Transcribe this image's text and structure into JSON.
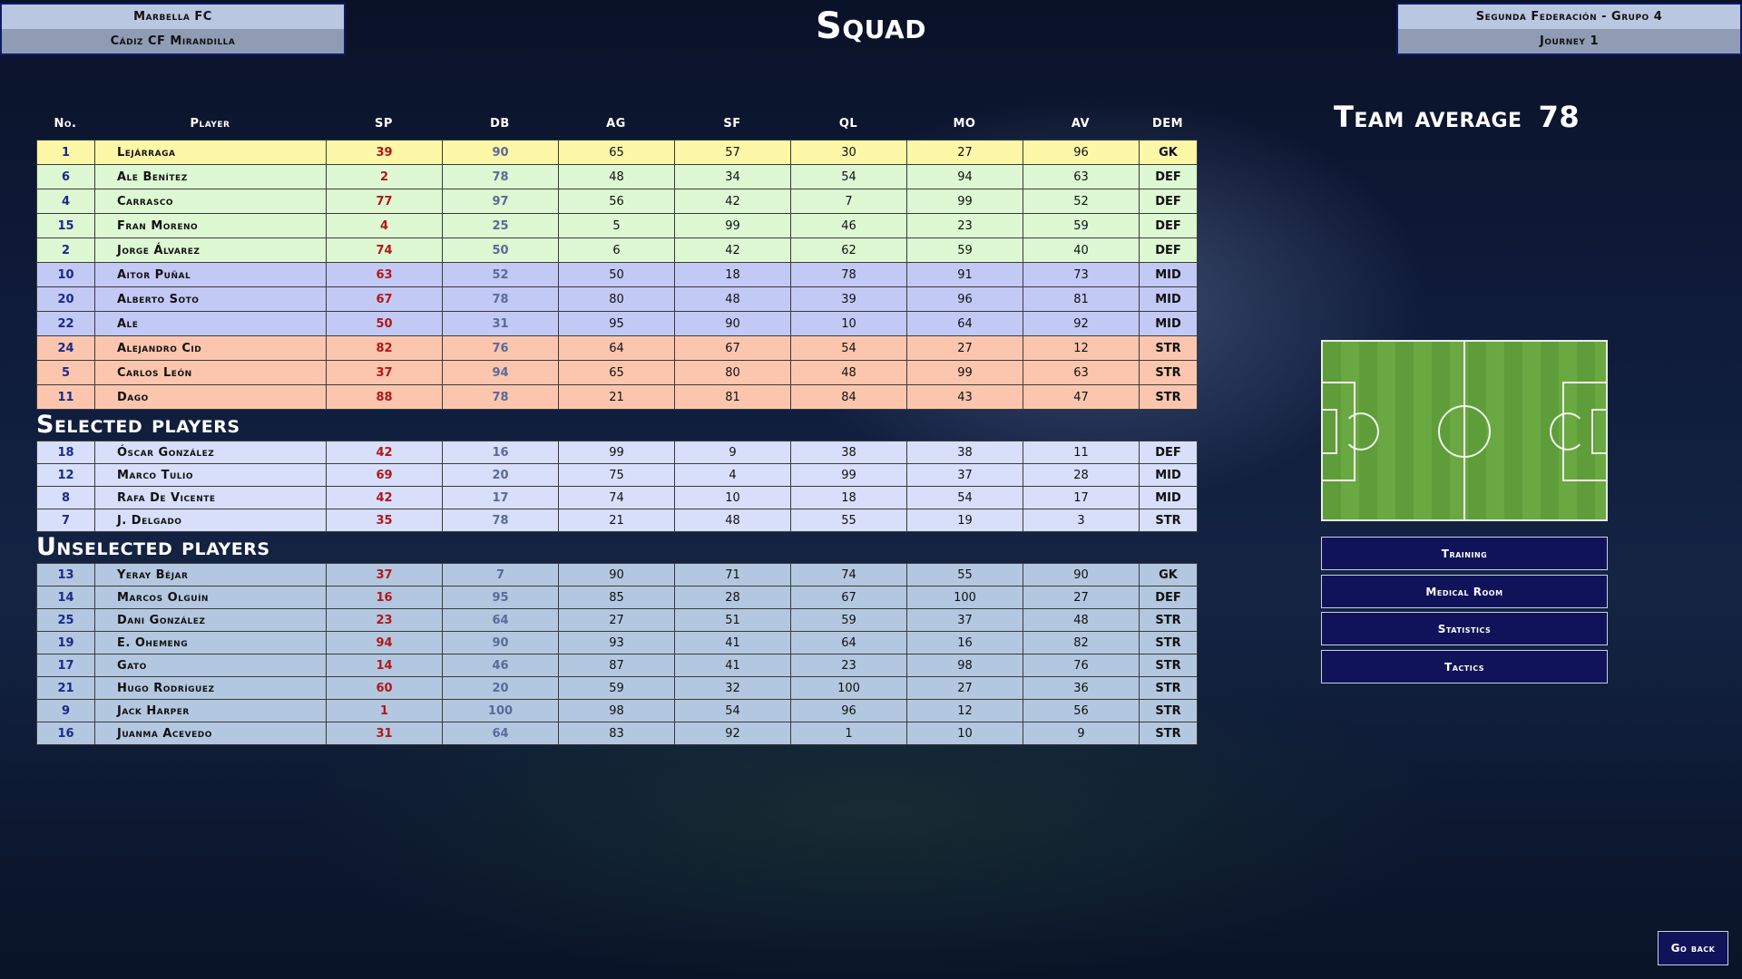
{
  "match": {
    "home": "Marbella FC",
    "away": "Cádiz CF Mirandilla"
  },
  "league": {
    "name": "Segunda Federación - Grupo 4",
    "journey": "Journey 1"
  },
  "title": "Squad",
  "team_average": {
    "label": "Team average",
    "value": "78"
  },
  "columns": [
    "No.",
    "Player",
    "SP",
    "DB",
    "AG",
    "SF",
    "QL",
    "MO",
    "AV",
    "DEM"
  ],
  "sections": {
    "selected": "Selected players",
    "unselected": "Unselected players"
  },
  "starting": [
    {
      "no": "1",
      "name": "Lejárraga",
      "sp": "39",
      "db": "90",
      "ag": "65",
      "sf": "57",
      "ql": "30",
      "mo": "27",
      "av": "96",
      "dem": "GK"
    },
    {
      "no": "6",
      "name": "Ale Benítez",
      "sp": "2",
      "db": "78",
      "ag": "48",
      "sf": "34",
      "ql": "54",
      "mo": "94",
      "av": "63",
      "dem": "DEF"
    },
    {
      "no": "4",
      "name": "Carrasco",
      "sp": "77",
      "db": "97",
      "ag": "56",
      "sf": "42",
      "ql": "7",
      "mo": "99",
      "av": "52",
      "dem": "DEF"
    },
    {
      "no": "15",
      "name": "Fran Moreno",
      "sp": "4",
      "db": "25",
      "ag": "5",
      "sf": "99",
      "ql": "46",
      "mo": "23",
      "av": "59",
      "dem": "DEF"
    },
    {
      "no": "2",
      "name": "Jorge Álvarez",
      "sp": "74",
      "db": "50",
      "ag": "6",
      "sf": "42",
      "ql": "62",
      "mo": "59",
      "av": "40",
      "dem": "DEF"
    },
    {
      "no": "10",
      "name": "Aitor Puñal",
      "sp": "63",
      "db": "52",
      "ag": "50",
      "sf": "18",
      "ql": "78",
      "mo": "91",
      "av": "73",
      "dem": "MID"
    },
    {
      "no": "20",
      "name": "Alberto Soto",
      "sp": "67",
      "db": "78",
      "ag": "80",
      "sf": "48",
      "ql": "39",
      "mo": "96",
      "av": "81",
      "dem": "MID"
    },
    {
      "no": "22",
      "name": "Ale",
      "sp": "50",
      "db": "31",
      "ag": "95",
      "sf": "90",
      "ql": "10",
      "mo": "64",
      "av": "92",
      "dem": "MID"
    },
    {
      "no": "24",
      "name": "Alejandro Cid",
      "sp": "82",
      "db": "76",
      "ag": "64",
      "sf": "67",
      "ql": "54",
      "mo": "27",
      "av": "12",
      "dem": "STR"
    },
    {
      "no": "5",
      "name": "Carlos León",
      "sp": "37",
      "db": "94",
      "ag": "65",
      "sf": "80",
      "ql": "48",
      "mo": "99",
      "av": "63",
      "dem": "STR"
    },
    {
      "no": "11",
      "name": "Dago",
      "sp": "88",
      "db": "78",
      "ag": "21",
      "sf": "81",
      "ql": "84",
      "mo": "43",
      "av": "47",
      "dem": "STR"
    }
  ],
  "selected": [
    {
      "no": "18",
      "name": "Óscar González",
      "sp": "42",
      "db": "16",
      "ag": "99",
      "sf": "9",
      "ql": "38",
      "mo": "38",
      "av": "11",
      "dem": "DEF"
    },
    {
      "no": "12",
      "name": "Marco Tulio",
      "sp": "69",
      "db": "20",
      "ag": "75",
      "sf": "4",
      "ql": "99",
      "mo": "37",
      "av": "28",
      "dem": "MID"
    },
    {
      "no": "8",
      "name": "Rafa De Vicente",
      "sp": "42",
      "db": "17",
      "ag": "74",
      "sf": "10",
      "ql": "18",
      "mo": "54",
      "av": "17",
      "dem": "MID"
    },
    {
      "no": "7",
      "name": "J. Delgado",
      "sp": "35",
      "db": "78",
      "ag": "21",
      "sf": "48",
      "ql": "55",
      "mo": "19",
      "av": "3",
      "dem": "STR"
    }
  ],
  "unselected": [
    {
      "no": "13",
      "name": "Yeray Béjar",
      "sp": "37",
      "db": "7",
      "ag": "90",
      "sf": "71",
      "ql": "74",
      "mo": "55",
      "av": "90",
      "dem": "GK"
    },
    {
      "no": "14",
      "name": "Marcos Olguín",
      "sp": "16",
      "db": "95",
      "ag": "85",
      "sf": "28",
      "ql": "67",
      "mo": "100",
      "av": "27",
      "dem": "DEF"
    },
    {
      "no": "25",
      "name": "Dani González",
      "sp": "23",
      "db": "64",
      "ag": "27",
      "sf": "51",
      "ql": "59",
      "mo": "37",
      "av": "48",
      "dem": "STR"
    },
    {
      "no": "19",
      "name": "E. Ohemeng",
      "sp": "94",
      "db": "90",
      "ag": "93",
      "sf": "41",
      "ql": "64",
      "mo": "16",
      "av": "82",
      "dem": "STR"
    },
    {
      "no": "17",
      "name": "Gato",
      "sp": "14",
      "db": "46",
      "ag": "87",
      "sf": "41",
      "ql": "23",
      "mo": "98",
      "av": "76",
      "dem": "STR"
    },
    {
      "no": "21",
      "name": "Hugo Rodríguez",
      "sp": "60",
      "db": "20",
      "ag": "59",
      "sf": "32",
      "ql": "100",
      "mo": "27",
      "av": "36",
      "dem": "STR"
    },
    {
      "no": "9",
      "name": "Jack Harper",
      "sp": "1",
      "db": "100",
      "ag": "98",
      "sf": "54",
      "ql": "96",
      "mo": "12",
      "av": "56",
      "dem": "STR"
    },
    {
      "no": "16",
      "name": "Juanma Acevedo",
      "sp": "31",
      "db": "64",
      "ag": "83",
      "sf": "92",
      "ql": "1",
      "mo": "10",
      "av": "9",
      "dem": "STR"
    }
  ],
  "menu": [
    "Training",
    "Medical Room",
    "Statistics",
    "Tactics"
  ],
  "go_back": "Go back",
  "colors": {
    "gk": "#fdf7a8",
    "def": "#ddf8d2",
    "mid": "#c3c9f5",
    "str": "#fcc6ae",
    "selected_row": "#d7dffa",
    "unselected_row": "#b3c8e0",
    "button_bg": "#10135a",
    "sp_text": "#b01818",
    "number_text": "#1a2a8a"
  }
}
